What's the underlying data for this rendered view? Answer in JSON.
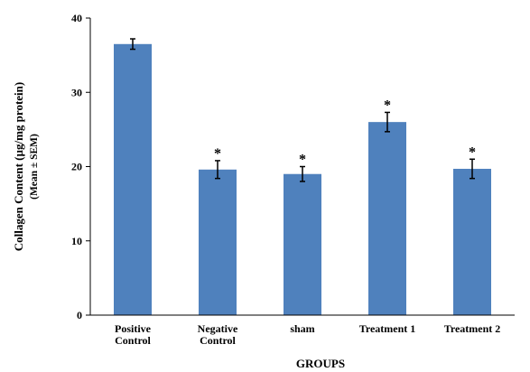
{
  "chart_data": {
    "type": "bar",
    "categories": [
      [
        "Positive",
        "Control"
      ],
      [
        "Negative",
        "Control"
      ],
      [
        "sham"
      ],
      [
        "Treatment 1"
      ],
      [
        "Treatment 2"
      ]
    ],
    "values": [
      36.5,
      19.6,
      19.0,
      26.0,
      19.7
    ],
    "errors": [
      0.7,
      1.2,
      1.0,
      1.3,
      1.3
    ],
    "annotations": [
      "",
      "*",
      "*",
      "*",
      "*"
    ],
    "xlabel": "GROUPS",
    "ylabel": "Collagen Content (µg/mg protein)",
    "ylabel_sub": "(Mean ± SEM)",
    "ylim": [
      0,
      40
    ],
    "yticks": [
      0,
      10,
      20,
      30,
      40
    ],
    "bar_color": "#4f81bd",
    "grid": false,
    "legend": "none"
  }
}
